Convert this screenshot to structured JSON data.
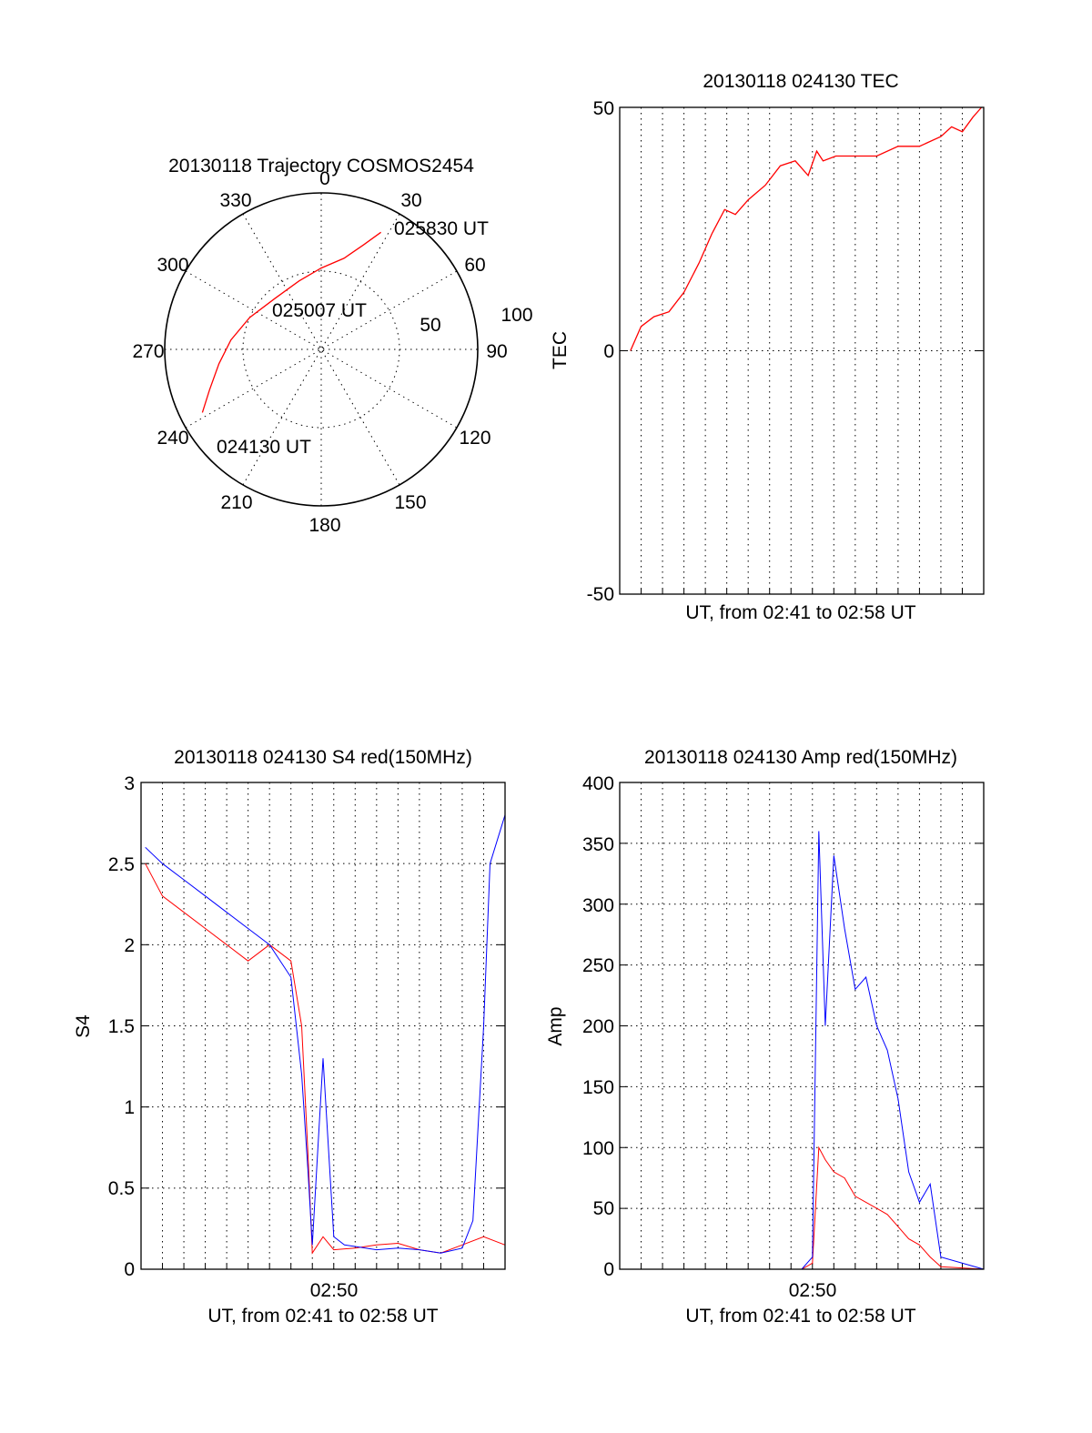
{
  "chart_data": [
    {
      "type": "polar",
      "title": "20130118 Trajectory COSMOS2454",
      "angle_labels": [
        "0",
        "30",
        "60",
        "90",
        "120",
        "150",
        "180",
        "210",
        "240",
        "270",
        "300",
        "330"
      ],
      "radial_labels": [
        "50",
        "100"
      ],
      "rlim": [
        0,
        100
      ],
      "grid": true,
      "series": [
        {
          "color": "#ff0000",
          "points": [
            {
              "azimuth": 242,
              "elevation": 14
            },
            {
              "azimuth": 250,
              "elevation": 24
            },
            {
              "azimuth": 262,
              "elevation": 34
            },
            {
              "azimuth": 276,
              "elevation": 42
            },
            {
              "azimuth": 294,
              "elevation": 50
            },
            {
              "azimuth": 318,
              "elevation": 56
            },
            {
              "azimuth": 342,
              "elevation": 54
            },
            {
              "azimuth": 0,
              "elevation": 48
            },
            {
              "azimuth": 14,
              "elevation": 40
            },
            {
              "azimuth": 22,
              "elevation": 28
            },
            {
              "azimuth": 27,
              "elevation": 16
            }
          ]
        }
      ],
      "annotations": [
        "025830 UT",
        "025007 UT",
        "024130 UT"
      ]
    },
    {
      "type": "line",
      "title": "20130118 024130 TEC",
      "xlabel": "UT, from 02:41 to 02:58 UT",
      "ylabel": "TEC",
      "xlim": [
        0,
        17
      ],
      "ylim": [
        -50,
        50
      ],
      "yticks": [
        "50",
        "0",
        "-50"
      ],
      "grid": true,
      "series": [
        {
          "color": "#ff0000",
          "x": [
            0.5,
            1.0,
            1.6,
            2.3,
            3.0,
            3.7,
            4.3,
            4.9,
            5.4,
            6.0,
            6.8,
            7.5,
            8.2,
            8.8,
            9.2,
            9.5,
            10.1,
            11.0,
            12.0,
            13.0,
            14.0,
            15.0,
            15.5,
            16.0,
            16.5,
            16.9
          ],
          "y": [
            0,
            5,
            7,
            8,
            12,
            18,
            24,
            29,
            28,
            31,
            34,
            38,
            39,
            36,
            41,
            39,
            40,
            40,
            40,
            42,
            42,
            44,
            46,
            45,
            48,
            50
          ]
        }
      ]
    },
    {
      "type": "line",
      "title": "20130118 024130 S4 red(150MHz)",
      "xlabel": "UT, from 02:41 to 02:58 UT",
      "ylabel": "S4",
      "xtick_labels": [
        "02:50"
      ],
      "xlim": [
        0,
        17
      ],
      "ylim": [
        0,
        3
      ],
      "yticks": [
        "3",
        "2.5",
        "2",
        "1.5",
        "1",
        "0.5",
        "0"
      ],
      "grid": true,
      "series": [
        {
          "color": "#ff0000",
          "x": [
            0.2,
            1.0,
            2.0,
            3.0,
            4.0,
            5.0,
            6.0,
            7.0,
            7.5,
            7.8,
            8.0,
            8.5,
            9.0,
            10.0,
            11.0,
            12.0,
            13.0,
            14.0,
            15.0,
            16.0,
            17.0
          ],
          "y": [
            2.5,
            2.3,
            2.2,
            2.1,
            2.0,
            1.9,
            2.0,
            1.9,
            1.5,
            0.7,
            0.1,
            0.2,
            0.12,
            0.13,
            0.15,
            0.16,
            0.12,
            0.1,
            0.15,
            0.2,
            0.15
          ]
        },
        {
          "color": "#0000ff",
          "x": [
            0.2,
            1.0,
            2.0,
            3.0,
            4.0,
            5.0,
            6.0,
            7.0,
            7.5,
            7.8,
            8.0,
            8.5,
            9.0,
            9.5,
            10.0,
            11.0,
            12.0,
            13.0,
            14.0,
            15.0,
            15.5,
            16.0,
            16.3,
            17.0
          ],
          "y": [
            2.6,
            2.5,
            2.4,
            2.3,
            2.2,
            2.1,
            2.0,
            1.8,
            1.2,
            0.6,
            0.15,
            1.3,
            0.2,
            0.15,
            0.14,
            0.12,
            0.13,
            0.12,
            0.1,
            0.13,
            0.3,
            1.5,
            2.5,
            2.8
          ]
        }
      ]
    },
    {
      "type": "line",
      "title": "20130118 024130 Amp red(150MHz)",
      "xlabel": "UT, from 02:41 to 02:58 UT",
      "ylabel": "Amp",
      "xtick_labels": [
        "02:50"
      ],
      "xlim": [
        0,
        17
      ],
      "ylim": [
        0,
        400
      ],
      "yticks": [
        "400",
        "350",
        "300",
        "250",
        "200",
        "150",
        "100",
        "50",
        "0"
      ],
      "grid": true,
      "series": [
        {
          "color": "#ff0000",
          "x": [
            0,
            8.5,
            9.0,
            9.3,
            9.6,
            10.0,
            10.5,
            11.0,
            11.5,
            12.0,
            12.5,
            13.0,
            13.5,
            14.0,
            14.5,
            15.0,
            17.0
          ],
          "y": [
            0,
            0,
            5,
            100,
            90,
            80,
            75,
            60,
            55,
            50,
            45,
            35,
            25,
            20,
            10,
            2,
            0
          ]
        },
        {
          "color": "#0000ff",
          "x": [
            0,
            8.5,
            9.0,
            9.3,
            9.6,
            10.0,
            10.5,
            11.0,
            11.5,
            12.0,
            12.5,
            13.0,
            13.5,
            14.0,
            14.5,
            15.0,
            17.0
          ],
          "y": [
            0,
            0,
            10,
            360,
            200,
            340,
            280,
            230,
            240,
            200,
            180,
            140,
            80,
            55,
            70,
            10,
            0
          ]
        }
      ]
    }
  ]
}
